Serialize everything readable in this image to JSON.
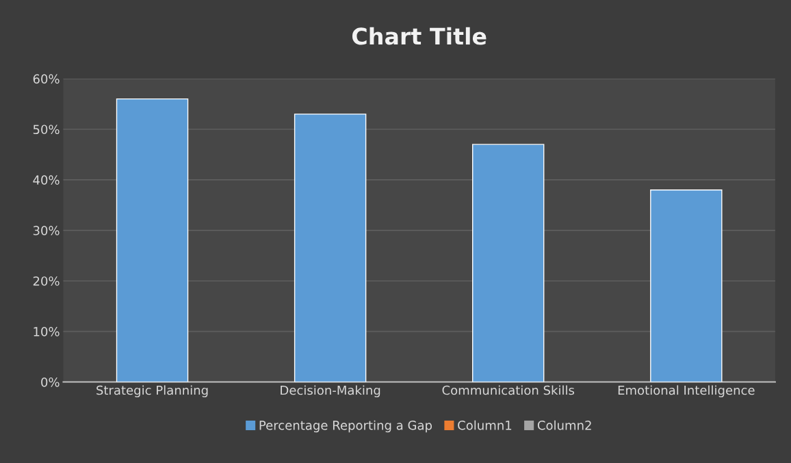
{
  "chart_data": {
    "type": "bar",
    "title": "Chart Title",
    "categories": [
      "Strategic Planning",
      "Decision-Making",
      "Communication Skills",
      "Emotional Intelligence"
    ],
    "series": [
      {
        "name": "Percentage Reporting a Gap",
        "color": "#5b9bd5",
        "values": [
          56,
          53,
          47,
          38
        ]
      },
      {
        "name": "Column1",
        "color": "#ed7d31",
        "values": [
          null,
          null,
          null,
          null
        ]
      },
      {
        "name": "Column2",
        "color": "#a5a5a5",
        "values": [
          null,
          null,
          null,
          null
        ]
      }
    ],
    "ylim": [
      0,
      60
    ],
    "yticks": [
      {
        "value": 0,
        "label": "0%"
      },
      {
        "value": 10,
        "label": "10%"
      },
      {
        "value": 20,
        "label": "20%"
      },
      {
        "value": 30,
        "label": "30%"
      },
      {
        "value": 40,
        "label": "40%"
      },
      {
        "value": 50,
        "label": "50%"
      },
      {
        "value": 60,
        "label": "60%"
      }
    ],
    "grid": "y",
    "legend": "bottom"
  }
}
